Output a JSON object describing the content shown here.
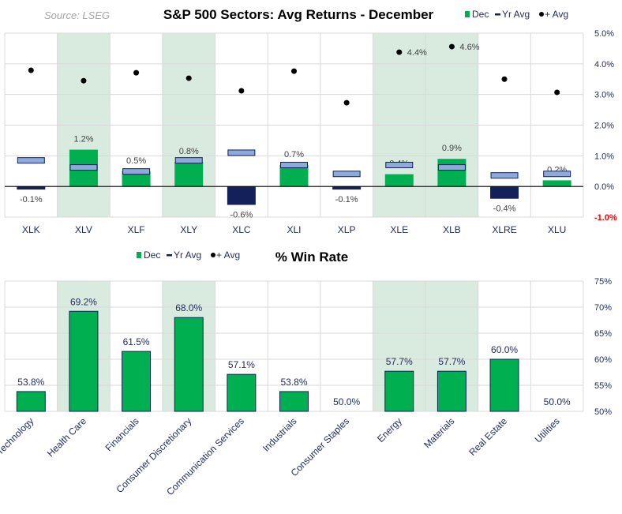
{
  "source": "Source:  LSEG",
  "colors": {
    "dec_positive": "#00b050",
    "dec_negative": "#13205a",
    "yr_avg": "#8eaadb",
    "dot": "#000000",
    "highlight": "#d9ebdf",
    "neg_tick": "#ff0000"
  },
  "chart_data": [
    {
      "type": "bar",
      "title": "S&P 500 Sectors: Avg Returns - December",
      "legend": {
        "position": "top-right",
        "entries": [
          "Dec",
          "Yr Avg",
          "+ Avg"
        ]
      },
      "categories": [
        "XLK",
        "XLV",
        "XLF",
        "XLY",
        "XLC",
        "XLI",
        "XLP",
        "XLE",
        "XLB",
        "XLRE",
        "XLU"
      ],
      "highlighted": [
        "XLV",
        "XLY",
        "XLE",
        "XLB"
      ],
      "ylim": [
        -1.0,
        5.0
      ],
      "yticks": [
        "5.0%",
        "4.0%",
        "3.0%",
        "2.0%",
        "1.0%",
        "0.0%",
        "-1.0%"
      ],
      "grid": true,
      "series": [
        {
          "name": "Dec",
          "values": [
            -0.1,
            1.2,
            0.5,
            0.8,
            -0.6,
            0.7,
            -0.1,
            0.4,
            0.9,
            -0.4,
            0.2
          ],
          "labels": [
            "-0.1%",
            "1.2%",
            "0.5%",
            "0.8%",
            "-0.6%",
            "0.7%",
            "-0.1%",
            "0.4%",
            "0.9%",
            "-0.4%",
            "0.2%"
          ]
        },
        {
          "name": "Yr Avg",
          "values": [
            0.85,
            0.62,
            0.49,
            0.85,
            1.1,
            0.7,
            0.41,
            0.7,
            0.62,
            0.36,
            0.41
          ]
        },
        {
          "name": "+ Avg",
          "values": [
            3.79,
            3.45,
            3.71,
            3.53,
            3.12,
            3.76,
            2.73,
            4.38,
            4.56,
            3.5,
            3.07
          ],
          "labels": [
            "",
            "",
            "",
            "",
            "",
            "",
            "",
            "4.4%",
            "4.6%",
            "",
            ""
          ]
        }
      ]
    },
    {
      "type": "bar",
      "title": "% Win Rate",
      "legend": {
        "position": "top-left",
        "entries": [
          "Dec",
          "Yr Avg",
          "+ Avg"
        ]
      },
      "categories": [
        "Technology",
        "Health Care",
        "Financials",
        "Consumer Discretionary",
        "Communication Services",
        "Industrials",
        "Consumer Staples",
        "Energy",
        "Materials",
        "Real Estate",
        "Utilities"
      ],
      "highlighted": [
        "Health Care",
        "Consumer Discretionary",
        "Energy",
        "Materials"
      ],
      "ylim": [
        50,
        75
      ],
      "yticks": [
        "75%",
        "70%",
        "65%",
        "60%",
        "55%",
        "50%"
      ],
      "grid": true,
      "series": [
        {
          "name": "Dec",
          "values": [
            53.8,
            69.2,
            61.5,
            68.0,
            57.1,
            53.8,
            50.0,
            57.7,
            57.7,
            60.0,
            50.0
          ],
          "labels": [
            "53.8%",
            "69.2%",
            "61.5%",
            "68.0%",
            "57.1%",
            "53.8%",
            "50.0%",
            "57.7%",
            "57.7%",
            "60.0%",
            "50.0%"
          ]
        }
      ]
    }
  ]
}
